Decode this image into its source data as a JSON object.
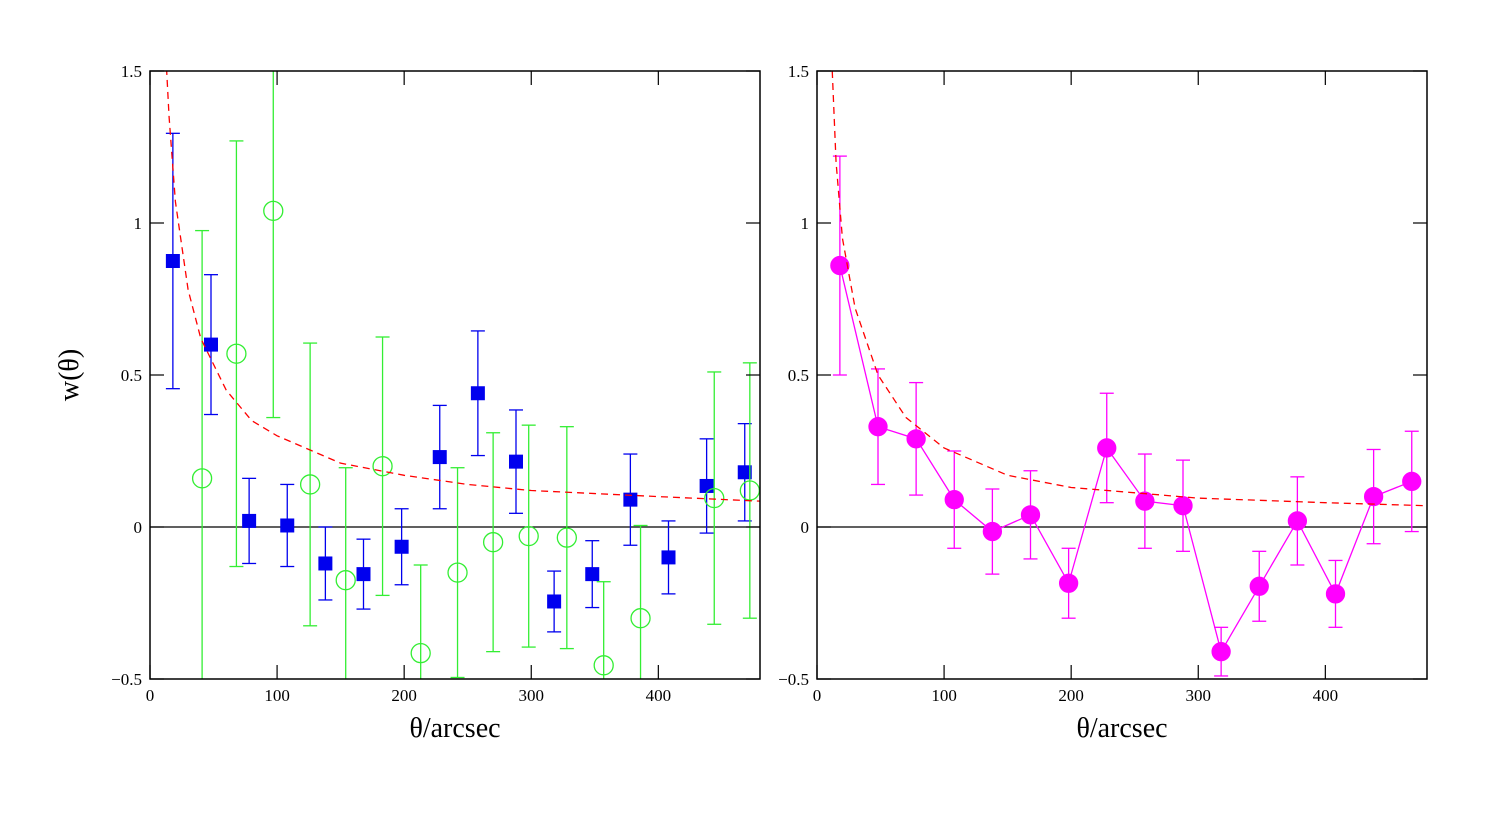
{
  "chart_data": [
    {
      "type": "scatter",
      "x_label": "θ/arcsec",
      "y_label": "w(θ)",
      "xlim": [
        0,
        480
      ],
      "ylim": [
        -0.5,
        1.5
      ],
      "xticks": [
        0,
        100,
        200,
        300,
        400
      ],
      "yticks": [
        {
          "value": -0.5,
          "label": "−0.5"
        },
        0,
        0.5,
        1,
        1.5
      ],
      "reference_line": 0,
      "series": [
        {
          "color": "#0000ee",
          "marker": "square",
          "filled": true,
          "x": [
            18,
            48,
            78,
            108,
            138,
            168,
            198,
            228,
            258,
            288,
            318,
            348,
            378,
            408,
            438,
            468
          ],
          "values": [
            0.875,
            0.6,
            0.02,
            0.005,
            -0.12,
            -0.155,
            -0.065,
            0.23,
            0.44,
            0.215,
            -0.245,
            -0.155,
            0.09,
            -0.1,
            0.135,
            0.18
          ],
          "errors": [
            0.42,
            0.23,
            0.14,
            0.135,
            0.12,
            0.115,
            0.125,
            0.17,
            0.205,
            0.17,
            0.1,
            0.11,
            0.15,
            0.12,
            0.155,
            0.16
          ]
        },
        {
          "color": "#33ee33",
          "marker": "circle",
          "filled": false,
          "x": [
            41,
            68,
            97,
            126,
            154,
            183,
            213,
            242,
            270,
            298,
            328,
            357,
            386,
            444,
            472
          ],
          "values": [
            0.16,
            0.57,
            1.04,
            0.14,
            -0.175,
            0.2,
            -0.415,
            -0.15,
            -0.05,
            -0.03,
            -0.035,
            -0.455,
            -0.3,
            0.095,
            0.12
          ],
          "errors": [
            0.815,
            0.7,
            0.68,
            0.465,
            0.37,
            0.425,
            0.29,
            0.345,
            0.36,
            0.365,
            0.365,
            0.275,
            0.305,
            0.415,
            0.42
          ]
        },
        {
          "color": "#ff0000",
          "line_style": "dashed",
          "x": [
            13,
            15,
            20,
            30,
            40,
            60,
            80,
            100,
            150,
            200,
            250,
            300,
            350,
            400,
            480
          ],
          "values": [
            1.51,
            1.35,
            1.07,
            0.78,
            0.62,
            0.45,
            0.35,
            0.3,
            0.21,
            0.17,
            0.14,
            0.12,
            0.11,
            0.1,
            0.085
          ]
        }
      ]
    },
    {
      "type": "scatter",
      "x_label": "θ/arcsec",
      "xlim": [
        0,
        480
      ],
      "ylim": [
        -0.5,
        1.5
      ],
      "xticks": [
        0,
        100,
        200,
        300,
        400
      ],
      "yticks": [
        {
          "value": -0.5,
          "label": "−0.5"
        },
        0,
        0.5,
        1,
        1.5
      ],
      "reference_line": 0,
      "series": [
        {
          "color": "#ff00ff",
          "marker": "circle",
          "filled": true,
          "line_style": "solid",
          "x": [
            18,
            48,
            78,
            108,
            138,
            168,
            198,
            228,
            258,
            288,
            318,
            348,
            378,
            408,
            438,
            468
          ],
          "values": [
            0.86,
            0.33,
            0.29,
            0.09,
            -0.015,
            0.04,
            -0.185,
            0.26,
            0.085,
            0.07,
            -0.41,
            -0.195,
            0.02,
            -0.22,
            0.1,
            0.15
          ],
          "errors": [
            0.36,
            0.19,
            0.185,
            0.16,
            0.14,
            0.145,
            0.115,
            0.18,
            0.155,
            0.15,
            0.08,
            0.115,
            0.145,
            0.11,
            0.155,
            0.165
          ]
        },
        {
          "color": "#ff0000",
          "line_style": "dashed",
          "x": [
            12,
            15,
            20,
            30,
            48,
            70,
            100,
            150,
            200,
            300,
            400,
            480
          ],
          "values": [
            1.5,
            1.2,
            0.95,
            0.72,
            0.5,
            0.36,
            0.26,
            0.17,
            0.13,
            0.095,
            0.08,
            0.07
          ]
        }
      ]
    }
  ]
}
